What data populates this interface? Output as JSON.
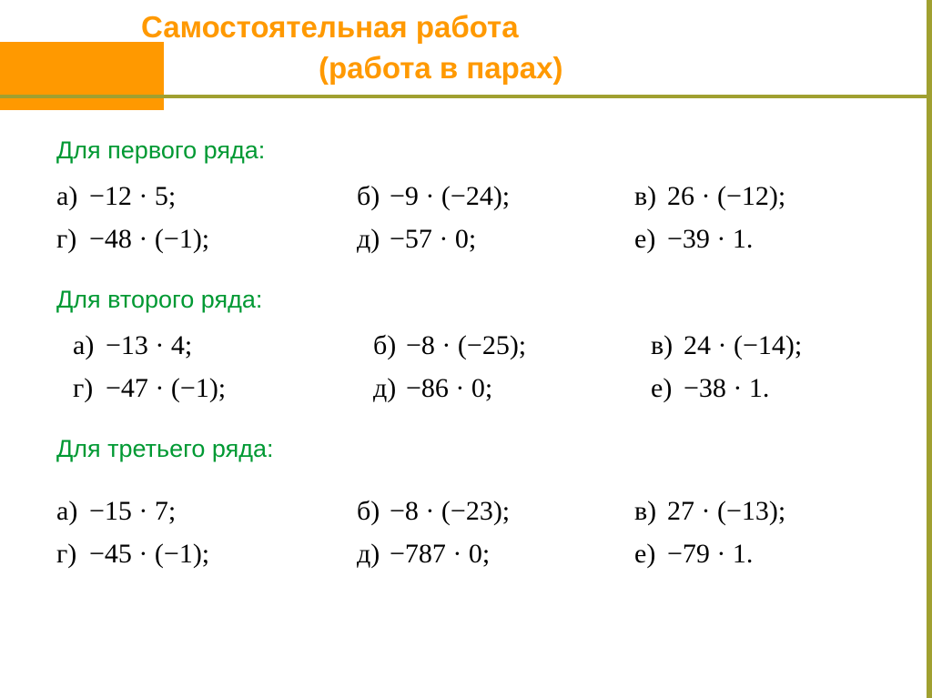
{
  "title_line1": "Самостоятельная работа",
  "title_line2": "(работа в парах)",
  "sections": {
    "s1": {
      "label": "Для первого ряда:",
      "items": {
        "a": {
          "lbl": "а)",
          "expr": "−12 · 5;"
        },
        "b": {
          "lbl": "б)",
          "expr": "−9 · (−24);"
        },
        "v": {
          "lbl": "в)",
          "expr": "26 · (−12);"
        },
        "g": {
          "lbl": "г)",
          "expr": "−48 · (−1);"
        },
        "d": {
          "lbl": "д)",
          "expr": "−57 · 0;"
        },
        "e": {
          "lbl": "е)",
          "expr": "−39 · 1."
        }
      }
    },
    "s2": {
      "label": "Для второго ряда:",
      "items": {
        "a": {
          "lbl": "а)",
          "expr": "−13 · 4;"
        },
        "b": {
          "lbl": "б)",
          "expr": "−8 · (−25);"
        },
        "v": {
          "lbl": "в)",
          "expr": "24 · (−14);"
        },
        "g": {
          "lbl": "г)",
          "expr": "−47 · (−1);"
        },
        "d": {
          "lbl": "д)",
          "expr": "−86 · 0;"
        },
        "e": {
          "lbl": "е)",
          "expr": "−38 · 1."
        }
      }
    },
    "s3": {
      "label": "Для третьего ряда:",
      "items": {
        "a": {
          "lbl": "а)",
          "expr": "−15 · 7;"
        },
        "b": {
          "lbl": "б)",
          "expr": "−8 · (−23);"
        },
        "v": {
          "lbl": "в)",
          "expr": "27 · (−13);"
        },
        "g": {
          "lbl": "г)",
          "expr": "−45 · (−1);"
        },
        "d": {
          "lbl": "д)",
          "expr": "−787 · 0;"
        },
        "e": {
          "lbl": "е)",
          "expr": "−79 · 1."
        }
      }
    }
  },
  "colors": {
    "accent_orange": "#ff9900",
    "olive": "#a0a030",
    "section_green": "#009933",
    "text": "#000000",
    "bg": "#ffffff"
  }
}
